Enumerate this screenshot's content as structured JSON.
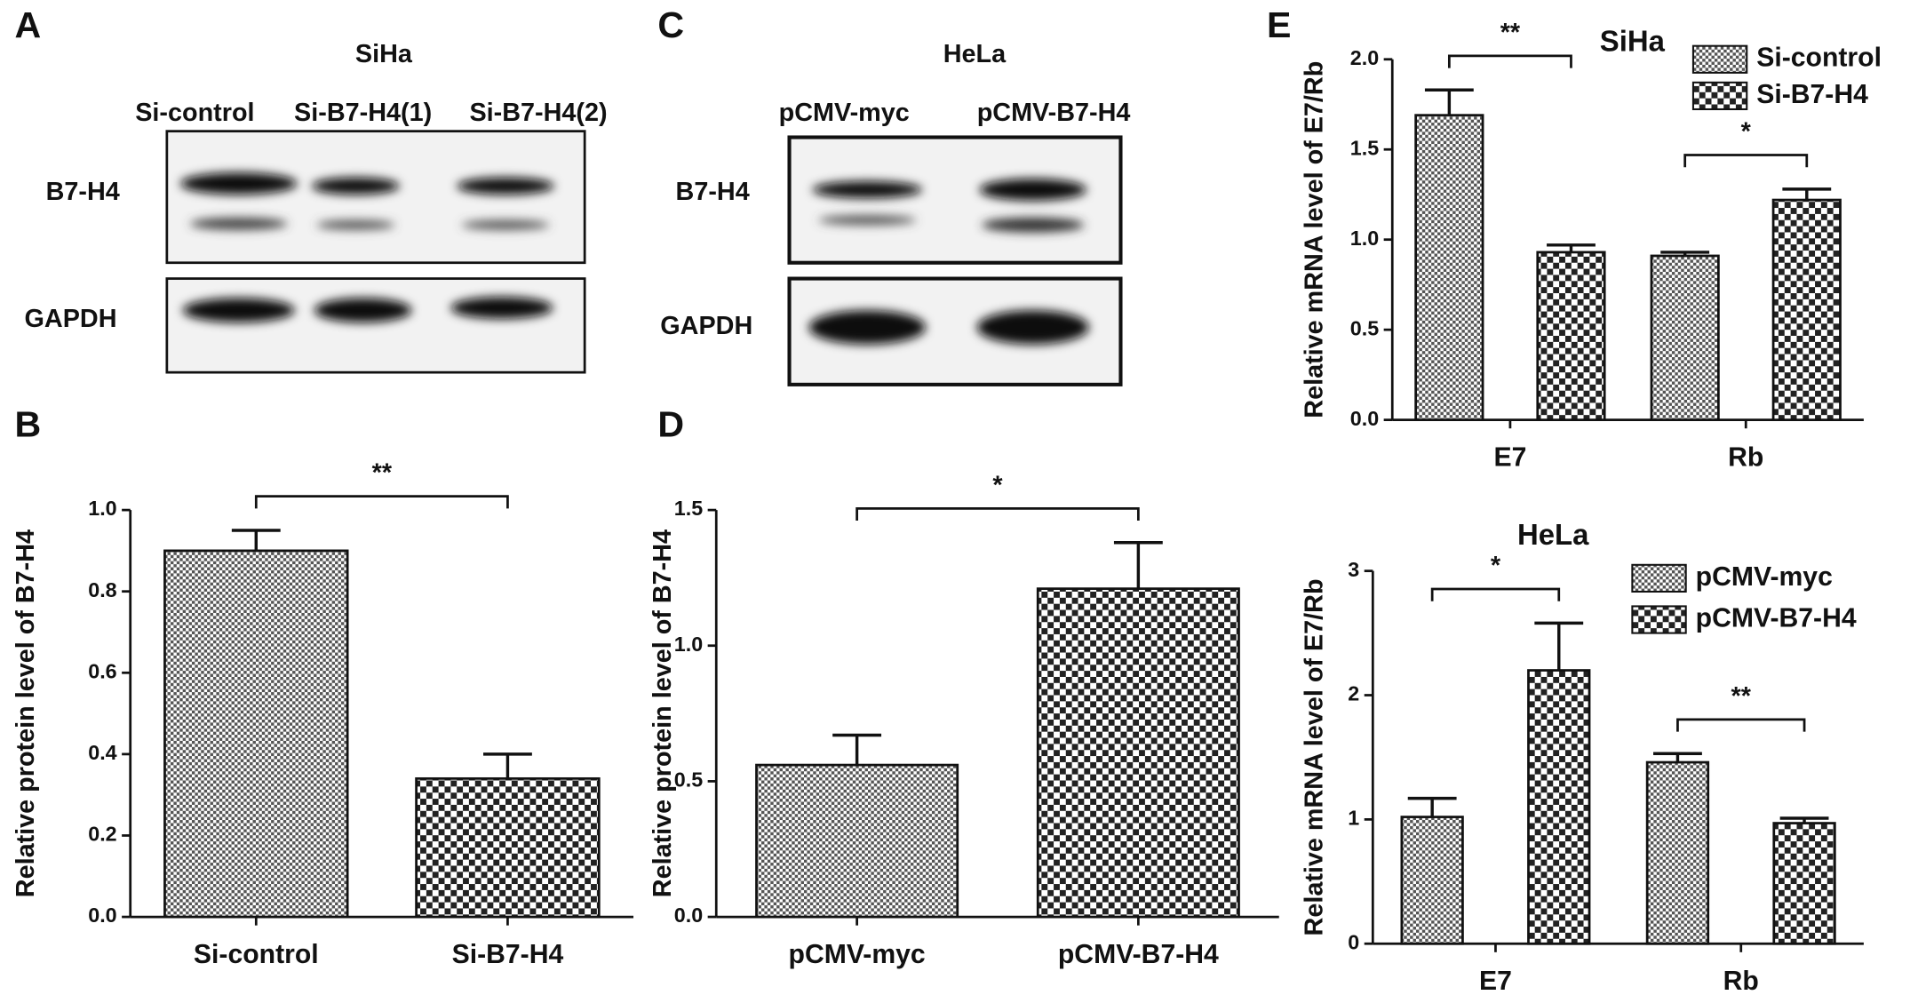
{
  "blots": [
    {
      "letter": "A",
      "title": "SiHa",
      "lanes": [
        "Si-control",
        "Si-B7-H4(1)",
        "Si-B7-H4(2)"
      ],
      "rows": [
        "B7-H4",
        "GAPDH"
      ]
    },
    {
      "letter": "C",
      "title": "HeLa",
      "lanes": [
        "pCMV-myc",
        "pCMV-B7-H4"
      ],
      "rows": [
        "B7-H4",
        "GAPDH"
      ]
    }
  ],
  "chart_data": [
    {
      "type": "bar",
      "letter": "B",
      "ylabel": "Relative protein level of B7-H4",
      "categories": [
        "Si-control",
        "Si-B7-H4"
      ],
      "values": [
        0.9,
        0.34
      ],
      "errors": [
        0.05,
        0.06
      ],
      "colors": [
        "#555555",
        "#222222"
      ],
      "significance": "**",
      "ylim": [
        0,
        1.0
      ],
      "yticks": [
        {
          "value": 0,
          "label": "0.0"
        },
        0.2,
        0.4,
        0.6,
        0.8,
        {
          "value": 1,
          "label": "1.0"
        }
      ]
    },
    {
      "type": "bar",
      "letter": "D",
      "ylabel": "Relative protein level of B7-H4",
      "categories": [
        "pCMV-myc",
        "pCMV-B7-H4"
      ],
      "values": [
        0.56,
        1.21
      ],
      "errors": [
        0.11,
        0.17
      ],
      "colors": [
        "#555555",
        "#222222"
      ],
      "significance": "*",
      "ylim": [
        0,
        1.5
      ],
      "yticks": [
        {
          "value": 0,
          "label": "0.0"
        },
        0.5,
        {
          "value": 1,
          "label": "1.0"
        },
        1.5
      ]
    },
    {
      "type": "grouped_bar",
      "letter": "E",
      "title": "SiHa",
      "ylabel": "Relative mRNA level of E7/Rb",
      "categories": [
        "E7",
        "Rb"
      ],
      "series": [
        {
          "name": "Si-control",
          "color": "#555555",
          "values": [
            1.69,
            0.91
          ],
          "errors": [
            0.14,
            0.02
          ]
        },
        {
          "name": "Si-B7-H4",
          "color": "#222222",
          "values": [
            0.93,
            1.22
          ],
          "errors": [
            0.04,
            0.06
          ]
        }
      ],
      "significance": [
        "**",
        "*"
      ],
      "ylim": [
        0,
        2.0
      ],
      "yticks": [
        {
          "value": 0,
          "label": "0.0"
        },
        0.5,
        {
          "value": 1,
          "label": "1.0"
        },
        1.5,
        {
          "value": 2,
          "label": "2.0"
        }
      ],
      "legend": "upper right"
    },
    {
      "type": "grouped_bar",
      "title": "HeLa",
      "ylabel": "Relative mRNA level of E7/Rb",
      "categories": [
        "E7",
        "Rb"
      ],
      "series": [
        {
          "name": "pCMV-myc",
          "color": "#555555",
          "values": [
            1.02,
            1.46
          ],
          "errors": [
            0.15,
            0.07
          ]
        },
        {
          "name": "pCMV-B7-H4",
          "color": "#222222",
          "values": [
            2.2,
            0.97
          ],
          "errors": [
            0.38,
            0.04
          ]
        }
      ],
      "significance": [
        "*",
        "**"
      ],
      "ylim": [
        0,
        3
      ],
      "yticks": [
        0,
        1,
        2,
        3
      ],
      "legend": "upper right"
    }
  ]
}
